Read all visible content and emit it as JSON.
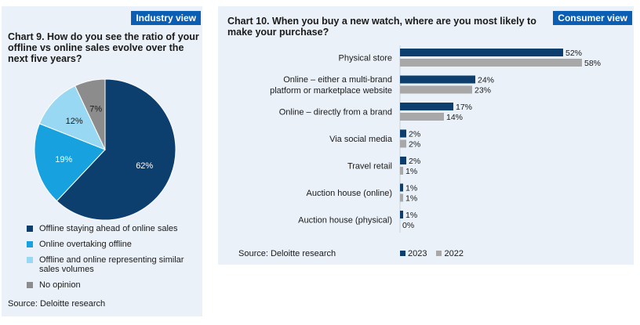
{
  "colors": {
    "navy": "#0c3e6e",
    "blue": "#17a2df",
    "light_blue": "#99d8f3",
    "gray": "#8c8c8c",
    "gray_2022": "#a8a8a8",
    "tag_bg": "#0a5fb4",
    "panel_bg": "#eaf1f8"
  },
  "left": {
    "tag": "Industry view",
    "source": "Source: Deloitte research"
  },
  "right": {
    "tag": "Consumer view",
    "source": "Source: Deloitte research"
  },
  "chart_data": [
    {
      "type": "pie",
      "title": "Chart 9. How do you see the ratio of your offline vs online sales evolve over the next five years?",
      "slices": [
        {
          "label": "Offline staying ahead of online sales",
          "value": 62,
          "display": "62%",
          "color": "#0c3e6e",
          "text_color": "#ffffff"
        },
        {
          "label": "Online overtaking offline",
          "value": 19,
          "display": "19%",
          "color": "#17a2df",
          "text_color": "#ffffff"
        },
        {
          "label": "Offline and online representing similar sales volumes",
          "value": 12,
          "display": "12%",
          "color": "#99d8f3",
          "text_color": "#1a1a1a"
        },
        {
          "label": "No opinion",
          "value": 7,
          "display": "7%",
          "color": "#8c8c8c",
          "text_color": "#1a1a1a"
        }
      ],
      "legend_position": "bottom"
    },
    {
      "type": "bar",
      "orientation": "horizontal",
      "title": "Chart 10. When you buy a new watch, where are you most likely to make your purchase?",
      "categories": [
        "Physical store",
        "Online – either a multi-brand platform or marketplace website",
        "Online – directly from a brand",
        "Via social media",
        "Travel retail",
        "Auction house (online)",
        "Auction house (physical)"
      ],
      "series": [
        {
          "name": "2023",
          "color": "#0c3e6e",
          "values": [
            52,
            24,
            17,
            2,
            2,
            1,
            1
          ]
        },
        {
          "name": "2022",
          "color": "#a8a8a8",
          "values": [
            58,
            23,
            14,
            2,
            1,
            1,
            0
          ]
        }
      ],
      "value_suffix": "%",
      "legend_position": "bottom"
    }
  ]
}
